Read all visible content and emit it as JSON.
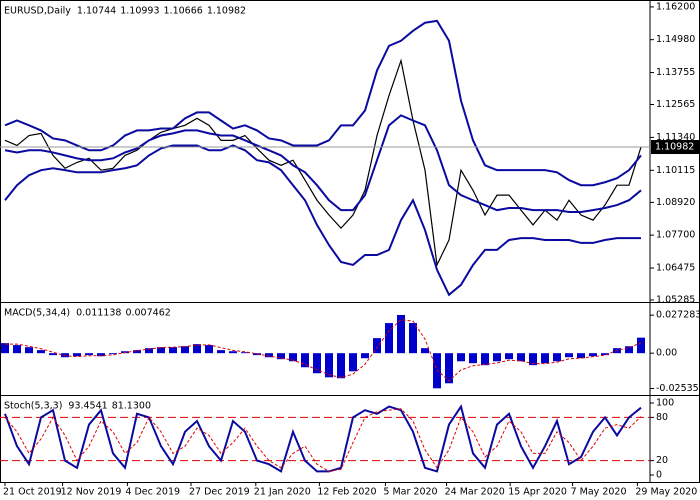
{
  "chart_data": [
    {
      "type": "line",
      "title": "EURUSD,Daily",
      "ohlc": [
        1.10744,
        1.10993,
        1.10666,
        1.10982
      ],
      "ylim": [
        1.0521,
        1.1642
      ],
      "yticks": [
        {
          "value": 1.162,
          "label": "1.16200"
        },
        {
          "value": 1.1498,
          "label": "1.14980"
        },
        1.13755,
        1.12565,
        {
          "value": 1.1134,
          "label": "1.11340"
        },
        1.10115,
        {
          "value": 1.0892,
          "label": "1.08920"
        },
        {
          "value": 1.077,
          "label": "1.07700"
        },
        1.06475,
        1.05285
      ],
      "series": [
        {
          "color": "#000000",
          "values": [
            1.1123,
            1.1104,
            1.1141,
            1.1149,
            1.1067,
            1.1019,
            1.1041,
            1.1056,
            1.1012,
            1.1019,
            1.1067,
            1.1086,
            1.1123,
            1.1153,
            1.1167,
            1.1179,
            1.1205,
            1.1179,
            1.1123,
            1.1123,
            1.1141,
            1.1093,
            1.1049,
            1.103,
            1.1049,
            1.0975,
            1.09,
            1.0845,
            1.0796,
            1.0845,
            1.0937,
            1.1141,
            1.129,
            1.142,
            1.1197,
            1.1012,
            1.0659,
            1.0752,
            1.1012,
            1.0937,
            1.0845,
            1.0919,
            1.0919,
            1.0863,
            1.0808,
            1.0863,
            1.0826,
            1.09,
            1.0845,
            1.0826,
            1.0882,
            1.0956,
            1.0956,
            1.10982
          ]
        },
        {
          "color": "#0a0aa0",
          "values": [
            1.1179,
            1.1197,
            1.1179,
            1.116,
            1.113,
            1.1123,
            1.1104,
            1.1086,
            1.1086,
            1.1104,
            1.1141,
            1.116,
            1.116,
            1.1167,
            1.1167,
            1.1205,
            1.1227,
            1.1227,
            1.1197,
            1.1167,
            1.1179,
            1.116,
            1.113,
            1.1123,
            1.1104,
            1.1104,
            1.1104,
            1.1123,
            1.1179,
            1.1179,
            1.1234,
            1.1383,
            1.1475,
            1.1494,
            1.1531,
            1.1561,
            1.1568,
            1.1494,
            1.1271,
            1.1123,
            1.103,
            1.1012,
            1.1012,
            1.1012,
            1.1012,
            1.1012,
            1.1004,
            1.0975,
            1.0956,
            1.0956,
            1.0967,
            1.0982,
            1.1012,
            1.1067
          ]
        },
        {
          "color": "#0a0aa0",
          "values": [
            1.1086,
            1.1078,
            1.1086,
            1.1086,
            1.1078,
            1.1067,
            1.1056,
            1.1049,
            1.1049,
            1.1056,
            1.1078,
            1.1093,
            1.1123,
            1.1141,
            1.1149,
            1.116,
            1.116,
            1.1149,
            1.1141,
            1.1141,
            1.1123,
            1.1104,
            1.1086,
            1.1067,
            1.103,
            1.1004,
            1.0956,
            1.09,
            1.0863,
            1.0863,
            1.0919,
            1.1049,
            1.1179,
            1.1216,
            1.1197,
            1.1179,
            1.1086,
            1.0956,
            1.0919,
            1.09,
            1.0882,
            1.0863,
            1.0871,
            1.0871,
            1.0863,
            1.0863,
            1.0863,
            1.0856,
            1.0856,
            1.0863,
            1.0871,
            1.0882,
            1.09,
            1.0937
          ]
        },
        {
          "color": "#0a0aa0",
          "values": [
            1.09,
            1.0956,
            1.0993,
            1.1012,
            1.1019,
            1.1012,
            1.1004,
            1.1004,
            1.1004,
            1.1012,
            1.1019,
            1.103,
            1.1067,
            1.1093,
            1.1104,
            1.1104,
            1.1104,
            1.1086,
            1.1086,
            1.1104,
            1.1086,
            1.1049,
            1.1041,
            1.1012,
            1.0956,
            1.09,
            1.0808,
            1.0733,
            1.067,
            1.0659,
            1.0696,
            1.0696,
            1.0715,
            1.0826,
            1.09,
            1.0789,
            1.0641,
            1.0548,
            1.0585,
            1.0659,
            1.0715,
            1.0715,
            1.0752,
            1.0759,
            1.0759,
            1.0752,
            1.0752,
            1.0752,
            1.0741,
            1.0741,
            1.0752,
            1.0759,
            1.0759,
            1.0759
          ]
        }
      ]
    },
    {
      "type": "bar",
      "title": "MACD(5,34,4)",
      "readings": [
        0.011138,
        0.007462
      ],
      "ylim": [
        -0.03,
        0.036
      ],
      "yticks": [
        0.027283,
        {
          "value": 0,
          "label": "0.00"
        },
        -0.025355
      ],
      "series": [
        {
          "color": "#0000cc",
          "values": [
            0.0072,
            0.0058,
            0.0043,
            0.0022,
            -0.0014,
            -0.0029,
            -0.0022,
            -0.0014,
            -0.0022,
            -0.0007,
            0.0014,
            0.0022,
            0.0036,
            0.0043,
            0.0043,
            0.005,
            0.0065,
            0.0058,
            0.0022,
            0.0014,
            0.0007,
            -0.0014,
            -0.0029,
            -0.0043,
            -0.0058,
            -0.0101,
            -0.0144,
            -0.0173,
            -0.018,
            -0.013,
            -0.0036,
            0.0108,
            0.0216,
            0.0274,
            0.0216,
            0.0036,
            -0.0252,
            -0.0216,
            -0.0058,
            -0.0072,
            -0.0086,
            -0.0058,
            -0.0043,
            -0.0058,
            -0.0086,
            -0.0072,
            -0.0058,
            -0.0029,
            -0.0036,
            -0.0022,
            -0.0014,
            0.0036,
            0.005,
            0.011138
          ]
        },
        {
          "color": "#e00000",
          "dash": true,
          "values": [
            0.0065,
            0.0065,
            0.005,
            0.0032,
            0.0007,
            -0.0018,
            -0.0025,
            -0.0018,
            -0.0018,
            -0.0012,
            0.0004,
            0.0018,
            0.003,
            0.004,
            0.0043,
            0.0047,
            0.0058,
            0.006,
            0.004,
            0.002,
            0.001,
            -0.0005,
            -0.002,
            -0.0035,
            -0.005,
            -0.008,
            -0.012,
            -0.0155,
            -0.0175,
            -0.015,
            -0.008,
            0.004,
            0.016,
            0.024,
            0.023,
            0.01,
            -0.012,
            -0.02,
            -0.012,
            -0.009,
            -0.008,
            -0.007,
            -0.005,
            -0.0055,
            -0.0075,
            -0.0075,
            -0.0065,
            -0.004,
            -0.0035,
            -0.0025,
            -0.0015,
            0.002,
            0.004,
            0.007462
          ]
        }
      ]
    },
    {
      "type": "line",
      "title": "Stoch(5,3,3)",
      "readings": [
        93.4541,
        {
          "value": 81.13,
          "label": "81.1300"
        }
      ],
      "ylim": [
        -9.7,
        109.7
      ],
      "yticks": [
        100,
        80,
        20,
        0
      ],
      "levels": [
        80,
        20
      ],
      "series": [
        {
          "color": "#0a0aa0",
          "values": [
            85,
            40,
            15,
            80,
            90,
            20,
            10,
            70,
            90,
            30,
            10,
            85,
            80,
            40,
            15,
            60,
            75,
            40,
            20,
            75,
            60,
            20,
            15,
            5,
            60,
            20,
            5,
            5,
            10,
            80,
            90,
            85,
            95,
            90,
            60,
            10,
            5,
            70,
            95,
            30,
            10,
            70,
            85,
            40,
            10,
            40,
            75,
            15,
            25,
            60,
            80,
            55,
            80,
            93.4541
          ]
        },
        {
          "color": "#e00000",
          "dash": true,
          "values": [
            80,
            60,
            30,
            50,
            80,
            55,
            20,
            40,
            75,
            60,
            30,
            45,
            80,
            60,
            30,
            40,
            65,
            55,
            30,
            45,
            65,
            40,
            20,
            10,
            30,
            40,
            15,
            5,
            8,
            45,
            80,
            88,
            90,
            92,
            75,
            35,
            10,
            35,
            80,
            60,
            25,
            40,
            75,
            60,
            30,
            30,
            60,
            45,
            20,
            40,
            65,
            70,
            65,
            81.13
          ]
        }
      ],
      "xticks": [
        {
          "value": 0,
          "label": "21 Oct 2019"
        },
        {
          "value": 4.8,
          "label": "12 Nov 2019"
        },
        {
          "value": 10.2,
          "label": "4 Dec 2019"
        },
        {
          "value": 15.5,
          "label": "27 Dec 2019"
        },
        {
          "value": 20.9,
          "label": "21 Jan 2020"
        },
        {
          "value": 26.2,
          "label": "12 Feb 2020"
        },
        {
          "value": 31.7,
          "label": "5 Mar 2020"
        },
        {
          "value": 36.8,
          "label": "24 Mar 2020"
        },
        {
          "value": 42.1,
          "label": "15 Apr 2020"
        },
        {
          "value": 47.3,
          "label": "7 May 2020"
        },
        {
          "value": 52.7,
          "label": "29 May 2020"
        }
      ]
    }
  ]
}
